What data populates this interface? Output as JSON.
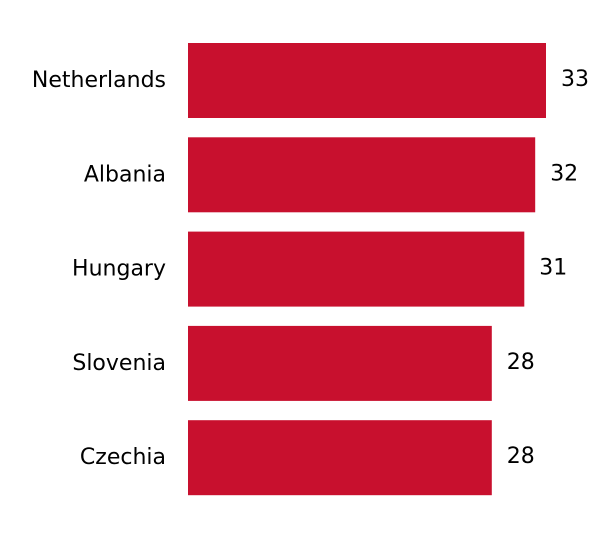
{
  "chart_data": {
    "type": "bar",
    "orientation": "horizontal",
    "title": "",
    "xlabel": "",
    "ylabel": "",
    "categories": [
      "Netherlands",
      "Albania",
      "Hungary",
      "Slovenia",
      "Czechia"
    ],
    "values": [
      33,
      32,
      31,
      28,
      28
    ],
    "value_labels": [
      "33",
      "32",
      "31",
      "28",
      "28"
    ],
    "xlim": [
      0,
      33
    ],
    "grid": false,
    "legend": "none",
    "bar_color": "#c8102e"
  }
}
